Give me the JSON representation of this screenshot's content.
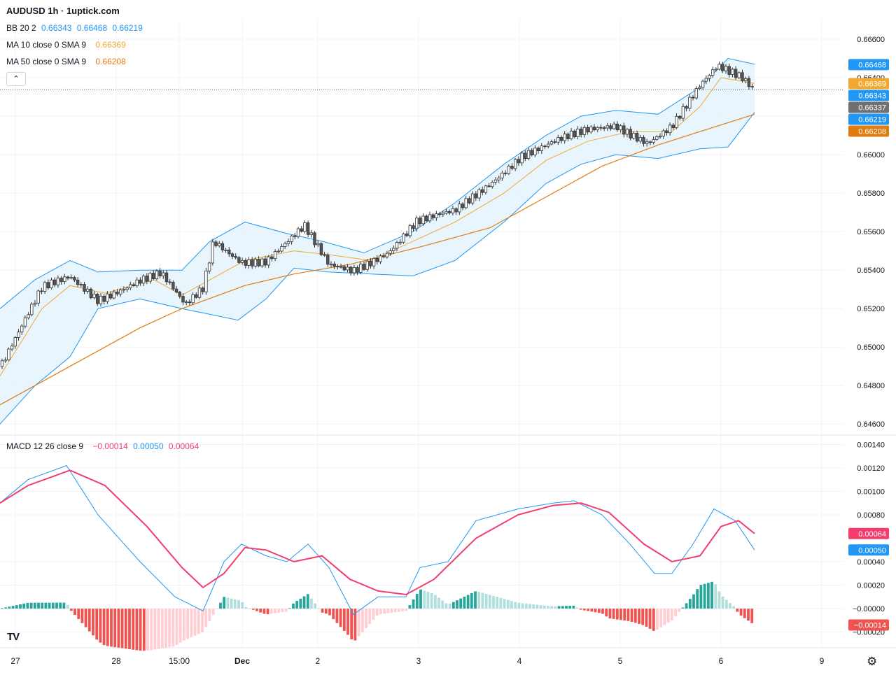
{
  "header": {
    "title": "AUDUSD 1h · 1uptick.com",
    "bb": {
      "label": "BB 20 2",
      "basis": "0.66343",
      "upper": "0.66468",
      "lower": "0.66219"
    },
    "ma10": {
      "label": "MA 10 close 0 SMA 9",
      "value": "0.66369"
    },
    "ma50": {
      "label": "MA 50 close 0 SMA 9",
      "value": "0.66208"
    },
    "macd": {
      "label": "MACD 12 26 close 9",
      "hist": "−0.00014",
      "macd": "0.00050",
      "signal": "0.00064"
    }
  },
  "colors": {
    "bb": "#2196f3",
    "bb_fill": "#e3f2fd",
    "ma10": "#f0a830",
    "ma50": "#e07b10",
    "macd": "#2196f3",
    "signal": "#f23d6d",
    "hist_up": "#26a69a",
    "hist_up_light": "#b2dfdb",
    "hist_down": "#ef5350",
    "hist_down_light": "#ffcdd2",
    "candle_up": "#ffffff",
    "candle_down": "#555555",
    "last_price": "#707070"
  },
  "price_axis": {
    "ticks": [
      "0.66600",
      "0.66400",
      "0.66200",
      "0.66000",
      "0.65800",
      "0.65600",
      "0.65400",
      "0.65200",
      "0.65000",
      "0.64800",
      "0.64600"
    ],
    "badges": [
      {
        "value": "0.66468",
        "color": "#2196f3"
      },
      {
        "value": "0.66369",
        "color": "#f0a830"
      },
      {
        "value": "0.66343",
        "color": "#2196f3"
      },
      {
        "value": "0.66337",
        "color": "#707070"
      },
      {
        "value": "0.66219",
        "color": "#2196f3"
      },
      {
        "value": "0.66208",
        "color": "#e07b10"
      }
    ]
  },
  "macd_axis": {
    "ticks": [
      "0.00140",
      "0.00120",
      "0.00100",
      "0.00080",
      "0.00040",
      "0.00020",
      "−0.00000",
      "−0.00020"
    ],
    "badges": [
      {
        "value": "0.00064",
        "color": "#f23d6d"
      },
      {
        "value": "0.00050",
        "color": "#2196f3"
      },
      {
        "value": "−0.00014",
        "color": "#ef5350"
      }
    ]
  },
  "time_axis": {
    "labels": [
      "27",
      "28",
      "15:00",
      "Dec",
      "2",
      "3",
      "4",
      "5",
      "6",
      "9"
    ]
  },
  "chart_data": {
    "type": "line",
    "title": "AUDUSD 1h",
    "xlabel": "",
    "ylabel": "",
    "x": [
      "27",
      "28",
      "15:00",
      "Dec",
      "2",
      "3",
      "4",
      "5",
      "6",
      "9"
    ],
    "price_range": [
      0.6455,
      0.6668
    ],
    "macd_range": [
      -0.00025,
      0.00145
    ],
    "grid": true,
    "series": [
      {
        "name": "AUDUSD",
        "points": [
          [
            0,
            0.649
          ],
          [
            60,
            0.653
          ],
          [
            100,
            0.6536
          ],
          [
            140,
            0.6525
          ],
          [
            200,
            0.6535
          ],
          [
            230,
            0.6538
          ],
          [
            265,
            0.6521
          ],
          [
            290,
            0.653
          ],
          [
            305,
            0.6555
          ],
          [
            345,
            0.6545
          ],
          [
            380,
            0.6545
          ],
          [
            435,
            0.6562
          ],
          [
            470,
            0.6542
          ],
          [
            505,
            0.654
          ],
          [
            555,
            0.655
          ],
          [
            595,
            0.6565
          ],
          [
            650,
            0.657
          ],
          [
            700,
            0.6585
          ],
          [
            745,
            0.66
          ],
          [
            795,
            0.6607
          ],
          [
            840,
            0.6612
          ],
          [
            880,
            0.6615
          ],
          [
            925,
            0.6607
          ],
          [
            960,
            0.6615
          ],
          [
            1000,
            0.6635
          ],
          [
            1025,
            0.6645
          ],
          [
            1060,
            0.664
          ],
          [
            1078,
            0.6634
          ]
        ]
      },
      {
        "name": "BB upper",
        "points": [
          [
            0,
            0.652
          ],
          [
            50,
            0.6535
          ],
          [
            100,
            0.6545
          ],
          [
            140,
            0.6539
          ],
          [
            200,
            0.654
          ],
          [
            260,
            0.654
          ],
          [
            300,
            0.6555
          ],
          [
            350,
            0.6565
          ],
          [
            410,
            0.6559
          ],
          [
            460,
            0.6555
          ],
          [
            520,
            0.6549
          ],
          [
            590,
            0.656
          ],
          [
            650,
            0.6575
          ],
          [
            720,
            0.6595
          ],
          [
            780,
            0.661
          ],
          [
            830,
            0.662
          ],
          [
            880,
            0.6623
          ],
          [
            940,
            0.6621
          ],
          [
            1000,
            0.6635
          ],
          [
            1040,
            0.665
          ],
          [
            1078,
            0.6647
          ]
        ]
      },
      {
        "name": "BB lower",
        "points": [
          [
            0,
            0.646
          ],
          [
            50,
            0.648
          ],
          [
            100,
            0.6495
          ],
          [
            140,
            0.652
          ],
          [
            200,
            0.6525
          ],
          [
            260,
            0.652
          ],
          [
            300,
            0.6517
          ],
          [
            340,
            0.6514
          ],
          [
            380,
            0.6525
          ],
          [
            420,
            0.6541
          ],
          [
            470,
            0.6539
          ],
          [
            530,
            0.6538
          ],
          [
            590,
            0.6537
          ],
          [
            650,
            0.6545
          ],
          [
            720,
            0.6565
          ],
          [
            780,
            0.6585
          ],
          [
            830,
            0.6595
          ],
          [
            880,
            0.66
          ],
          [
            940,
            0.6598
          ],
          [
            1000,
            0.6603
          ],
          [
            1040,
            0.6604
          ],
          [
            1078,
            0.6622
          ]
        ]
      },
      {
        "name": "MA 10",
        "points": [
          [
            0,
            0.6485
          ],
          [
            60,
            0.652
          ],
          [
            100,
            0.6532
          ],
          [
            150,
            0.6528
          ],
          [
            220,
            0.6535
          ],
          [
            260,
            0.6527
          ],
          [
            300,
            0.6535
          ],
          [
            350,
            0.6545
          ],
          [
            420,
            0.655
          ],
          [
            470,
            0.6548
          ],
          [
            530,
            0.6545
          ],
          [
            590,
            0.6555
          ],
          [
            650,
            0.6565
          ],
          [
            720,
            0.658
          ],
          [
            780,
            0.6597
          ],
          [
            840,
            0.6607
          ],
          [
            900,
            0.6612
          ],
          [
            960,
            0.6612
          ],
          [
            1000,
            0.6625
          ],
          [
            1030,
            0.664
          ],
          [
            1078,
            0.6637
          ]
        ]
      },
      {
        "name": "MA 50",
        "points": [
          [
            0,
            0.647
          ],
          [
            100,
            0.649
          ],
          [
            200,
            0.651
          ],
          [
            260,
            0.652
          ],
          [
            350,
            0.6532
          ],
          [
            420,
            0.6538
          ],
          [
            500,
            0.6543
          ],
          [
            600,
            0.6552
          ],
          [
            700,
            0.6562
          ],
          [
            780,
            0.6578
          ],
          [
            860,
            0.6594
          ],
          [
            940,
            0.6605
          ],
          [
            1000,
            0.6612
          ],
          [
            1078,
            0.6621
          ]
        ]
      },
      {
        "name": "MACD",
        "points": [
          [
            0,
            0.0009
          ],
          [
            40,
            0.0011
          ],
          [
            95,
            0.00122
          ],
          [
            140,
            0.0008
          ],
          [
            200,
            0.0004
          ],
          [
            250,
            0.0001
          ],
          [
            290,
            -2e-05
          ],
          [
            320,
            0.0004
          ],
          [
            345,
            0.00055
          ],
          [
            380,
            0.00045
          ],
          [
            410,
            0.0004
          ],
          [
            440,
            0.00055
          ],
          [
            470,
            0.00035
          ],
          [
            505,
            -5e-05
          ],
          [
            540,
            0.0001
          ],
          [
            580,
            0.0001
          ],
          [
            600,
            0.00035
          ],
          [
            640,
            0.0004
          ],
          [
            680,
            0.00075
          ],
          [
            740,
            0.00085
          ],
          [
            790,
            0.0009
          ],
          [
            820,
            0.00092
          ],
          [
            860,
            0.0008
          ],
          [
            900,
            0.00055
          ],
          [
            935,
            0.0003
          ],
          [
            960,
            0.0003
          ],
          [
            990,
            0.00055
          ],
          [
            1020,
            0.00085
          ],
          [
            1050,
            0.00075
          ],
          [
            1078,
            0.0005
          ]
        ]
      },
      {
        "name": "Signal",
        "points": [
          [
            0,
            0.0009
          ],
          [
            40,
            0.00105
          ],
          [
            100,
            0.00118
          ],
          [
            150,
            0.00105
          ],
          [
            210,
            0.0007
          ],
          [
            260,
            0.00035
          ],
          [
            290,
            0.00018
          ],
          [
            320,
            0.0003
          ],
          [
            350,
            0.00052
          ],
          [
            380,
            0.0005
          ],
          [
            420,
            0.0004
          ],
          [
            460,
            0.00045
          ],
          [
            500,
            0.00025
          ],
          [
            540,
            0.00015
          ],
          [
            580,
            0.00012
          ],
          [
            620,
            0.00025
          ],
          [
            680,
            0.0006
          ],
          [
            740,
            0.0008
          ],
          [
            790,
            0.00088
          ],
          [
            830,
            0.0009
          ],
          [
            870,
            0.00082
          ],
          [
            920,
            0.00055
          ],
          [
            960,
            0.0004
          ],
          [
            1000,
            0.00045
          ],
          [
            1030,
            0.0007
          ],
          [
            1055,
            0.00075
          ],
          [
            1078,
            0.00064
          ]
        ]
      }
    ]
  }
}
